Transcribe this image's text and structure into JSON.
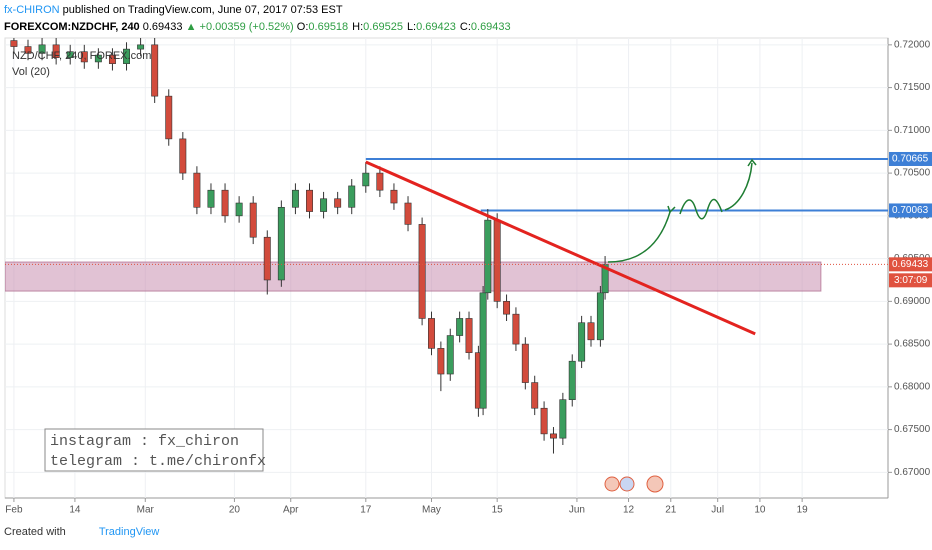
{
  "header": {
    "author": "fx-CHIRON",
    "published": "published on TradingView.com, June 07, 2017 07:53 EST",
    "symbol": "FOREXCOM:NZDCHF, 240",
    "last": 0.69433,
    "change": "▲ +0.00359 (+0.52%)",
    "ohlc": [
      {
        "label": "O:",
        "value": 0.69518
      },
      {
        "label": "H:",
        "value": 0.69525
      },
      {
        "label": "L:",
        "value": 0.69423
      },
      {
        "label": "C:",
        "value": 0.69433
      }
    ]
  },
  "footer": {
    "created": "Created with",
    "brand": "TradingView"
  },
  "chart_data": {
    "type": "candlestick",
    "symbol_label": "NZD/CHF, 240, FOREX.com",
    "indicator_label": "Vol (20)",
    "note": [
      "instagram : fx_chiron",
      "telegram : t.me/chironfx"
    ],
    "up_color": "#3a9d5d",
    "down_color": "#d24b3c",
    "x": [
      0,
      3,
      6,
      9,
      12,
      15,
      18,
      21,
      24,
      27,
      30,
      33,
      36,
      39,
      42,
      45,
      48,
      51,
      54,
      57,
      60,
      63,
      66,
      69,
      72,
      75,
      78,
      81,
      84,
      87,
      89,
      91,
      93,
      95,
      97,
      99,
      100,
      101,
      103,
      105,
      107,
      109,
      111,
      113,
      115,
      117,
      119,
      121,
      123,
      125,
      126
    ],
    "open": [
      0.7205,
      0.7198,
      0.719,
      0.72,
      0.7185,
      0.7192,
      0.718,
      0.7188,
      0.7178,
      0.7195,
      0.72,
      0.714,
      0.709,
      0.705,
      0.701,
      0.703,
      0.7,
      0.7015,
      0.6975,
      0.6925,
      0.701,
      0.703,
      0.7005,
      0.702,
      0.701,
      0.7035,
      0.705,
      0.703,
      0.7015,
      0.699,
      0.688,
      0.6845,
      0.6815,
      0.686,
      0.688,
      0.684,
      0.6775,
      0.691,
      0.6995,
      0.69,
      0.6885,
      0.685,
      0.6805,
      0.6775,
      0.6745,
      0.674,
      0.6785,
      0.683,
      0.6875,
      0.6855,
      0.691
    ],
    "high": [
      0.721,
      0.7206,
      0.7208,
      0.7208,
      0.72,
      0.72,
      0.7196,
      0.7196,
      0.7203,
      0.7208,
      0.721,
      0.7148,
      0.7098,
      0.7058,
      0.7038,
      0.7038,
      0.7023,
      0.7023,
      0.6983,
      0.7018,
      0.7038,
      0.7038,
      0.7028,
      0.7028,
      0.7043,
      0.7063,
      0.7058,
      0.7038,
      0.7023,
      0.6998,
      0.6888,
      0.6853,
      0.6868,
      0.6888,
      0.6888,
      0.6848,
      0.6918,
      0.7008,
      0.7003,
      0.6908,
      0.6893,
      0.6858,
      0.6813,
      0.6783,
      0.6753,
      0.6793,
      0.6838,
      0.6883,
      0.6883,
      0.6918,
      0.6953
    ],
    "low": [
      0.719,
      0.7182,
      0.7182,
      0.7177,
      0.7177,
      0.7172,
      0.7172,
      0.717,
      0.717,
      0.7187,
      0.7132,
      0.7082,
      0.7042,
      0.7002,
      0.7002,
      0.6992,
      0.6992,
      0.6967,
      0.6908,
      0.6917,
      0.7002,
      0.6997,
      0.6997,
      0.7002,
      0.7002,
      0.7027,
      0.7022,
      0.7007,
      0.6982,
      0.6872,
      0.6837,
      0.6795,
      0.6807,
      0.6852,
      0.6832,
      0.6765,
      0.6767,
      0.6902,
      0.6892,
      0.6877,
      0.6842,
      0.6797,
      0.6767,
      0.6737,
      0.6722,
      0.6732,
      0.6777,
      0.6822,
      0.6847,
      0.6847,
      0.6902
    ],
    "close": [
      0.7198,
      0.719,
      0.72,
      0.7185,
      0.7192,
      0.718,
      0.7188,
      0.7178,
      0.7195,
      0.72,
      0.714,
      0.709,
      0.705,
      0.701,
      0.703,
      0.7,
      0.7015,
      0.6975,
      0.6925,
      0.701,
      0.703,
      0.7005,
      0.702,
      0.701,
      0.7035,
      0.705,
      0.703,
      0.7015,
      0.699,
      0.688,
      0.6845,
      0.6815,
      0.686,
      0.688,
      0.684,
      0.6775,
      0.691,
      0.6995,
      0.69,
      0.6885,
      0.685,
      0.6805,
      0.6775,
      0.6745,
      0.674,
      0.6785,
      0.683,
      0.6875,
      0.6855,
      0.691,
      0.6943
    ],
    "xlim": [
      -1.9,
      186.3
    ],
    "ylim": [
      0.667,
      0.7208
    ],
    "xticks": [
      {
        "value": 0,
        "label": "Feb"
      },
      {
        "value": 13,
        "label": "14"
      },
      {
        "value": 28,
        "label": "Mar"
      },
      {
        "value": 47,
        "label": "20"
      },
      {
        "value": 59,
        "label": "Apr"
      },
      {
        "value": 75,
        "label": "17"
      },
      {
        "value": 89,
        "label": "May"
      },
      {
        "value": 103,
        "label": "15"
      },
      {
        "value": 120,
        "label": "Jun"
      },
      {
        "value": 131,
        "label": "12"
      },
      {
        "value": 140,
        "label": "21"
      },
      {
        "value": 150,
        "label": "Jul"
      },
      {
        "value": 159,
        "label": "10"
      },
      {
        "value": 168,
        "label": "19"
      }
    ],
    "yticks": [
      {
        "value": 0.72,
        "label": "0.72000"
      },
      {
        "value": 0.715,
        "label": "0.71500"
      },
      {
        "value": 0.71,
        "label": "0.71000"
      },
      {
        "value": 0.705,
        "label": "0.70500"
      },
      {
        "value": 0.7,
        "label": "0.70000"
      },
      {
        "value": 0.695,
        "label": "0.69500"
      },
      {
        "value": 0.69,
        "label": "0.69000"
      },
      {
        "value": 0.685,
        "label": "0.68500"
      },
      {
        "value": 0.68,
        "label": "0.68000"
      },
      {
        "value": 0.675,
        "label": "0.67500"
      },
      {
        "value": 0.67,
        "label": "0.67000"
      }
    ],
    "grid": true,
    "zone": {
      "from": 0.6912,
      "to": 0.6946,
      "x": [
        -1.9,
        172
      ],
      "color": "#c98fb0"
    },
    "levels": [
      {
        "value": 0.70665,
        "label": "0.70665",
        "start": 75,
        "color": "#3d7fd6"
      },
      {
        "value": 0.70063,
        "label": "0.70063",
        "start": 99.5,
        "color": "#3d7fd6"
      }
    ],
    "trendline": {
      "x": [
        75,
        158
      ],
      "y": [
        0.7063,
        0.6862
      ],
      "color": "#e3231f"
    },
    "price_line": {
      "value": 0.69433,
      "label": "0.69433",
      "countdown": "3:07:09",
      "color": "#e0523f"
    }
  }
}
